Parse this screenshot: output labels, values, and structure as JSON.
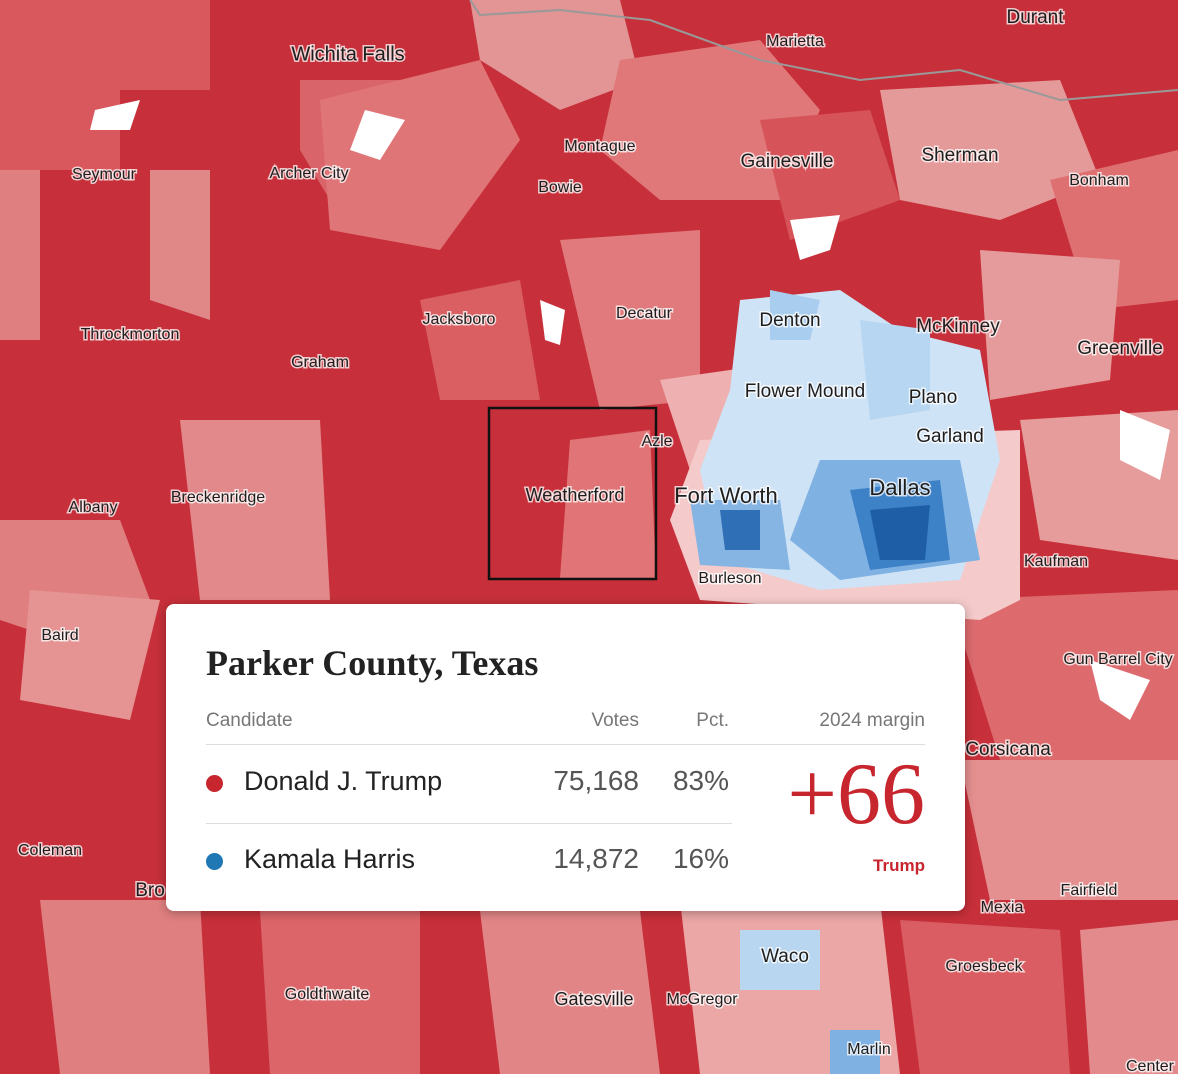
{
  "map": {
    "labels": [
      "Wichita Falls",
      "Marietta",
      "Durant",
      "Seymour",
      "Archer City",
      "Montague",
      "Gainesville",
      "Sherman",
      "Bonham",
      "Bowie",
      "Jacksboro",
      "Decatur",
      "Denton",
      "McKinney",
      "Greenville",
      "Throckmorton",
      "Graham",
      "Flower Mound",
      "Plano",
      "Azle",
      "Garland",
      "Albany",
      "Breckenridge",
      "Weatherford",
      "Fort Worth",
      "Dallas",
      "Burleson",
      "Kaufman",
      "Baird",
      "Gun Barrel City",
      "Corsicana",
      "Coleman",
      "Bro",
      "Fairfield",
      "Mexia",
      "Waco",
      "Groesbeck",
      "Goldthwaite",
      "Gatesville",
      "McGregor",
      "Marlin",
      "Center"
    ]
  },
  "tooltip": {
    "title": "Parker County, Texas",
    "headers": [
      "Candidate",
      "Votes",
      "Pct.",
      "2024 margin"
    ],
    "rows": [
      {
        "name": "Donald J. Trump",
        "votes": "75,168",
        "pct": "83%"
      },
      {
        "name": "Kamala Harris",
        "votes": "14,872",
        "pct": "16%"
      }
    ],
    "margin": "+66",
    "margin_label": "Trump"
  }
}
